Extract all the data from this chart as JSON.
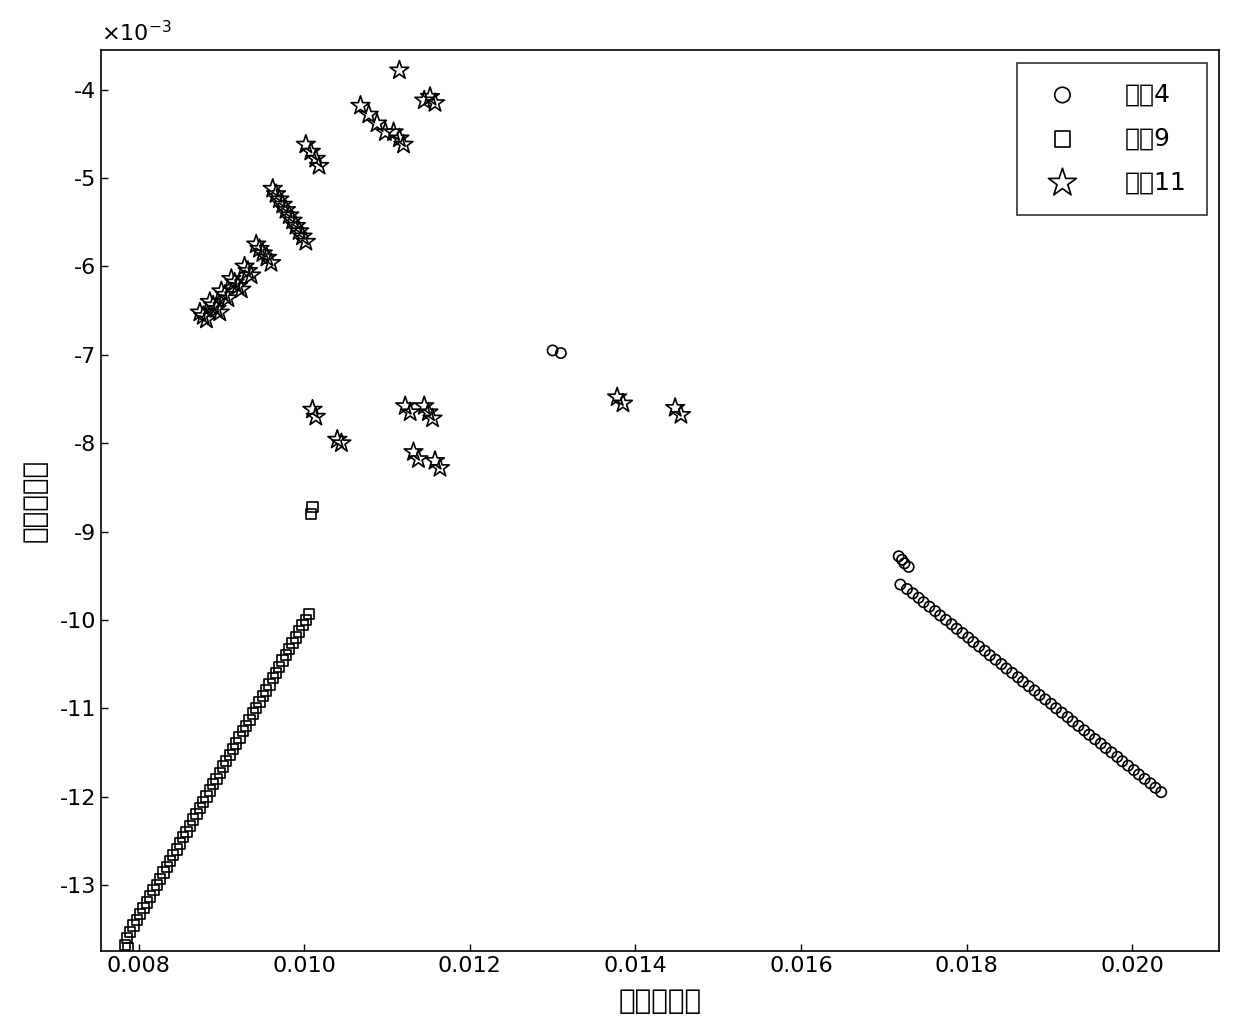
{
  "xlabel": "第一特征轴",
  "ylabel": "第二特征轴",
  "xlim": [
    0.00755,
    0.02105
  ],
  "ylim": [
    -13.75,
    -3.55
  ],
  "xtick_values": [
    0.008,
    0.01,
    0.012,
    0.014,
    0.016,
    0.018,
    0.02
  ],
  "ytick_values": [
    -4,
    -5,
    -6,
    -7,
    -8,
    -9,
    -10,
    -11,
    -12,
    -13
  ],
  "legend_labels": [
    "故障4",
    "故障9",
    "故障11"
  ],
  "background_color": "#ffffff",
  "font_size_axis_label": 20,
  "font_size_tick": 16,
  "font_size_legend": 18,
  "fault4_x": [
    0.013,
    0.0131,
    0.0172,
    0.01728,
    0.01735,
    0.01742,
    0.01748,
    0.01755,
    0.01762,
    0.01768,
    0.01775,
    0.01782,
    0.01788,
    0.01795,
    0.01802,
    0.01808,
    0.01815,
    0.01822,
    0.01828,
    0.01835,
    0.01842,
    0.01848,
    0.01855,
    0.01862,
    0.01868,
    0.01875,
    0.01882,
    0.01888,
    0.01895,
    0.01902,
    0.01908,
    0.01915,
    0.01922,
    0.01928,
    0.01935,
    0.01942,
    0.01948,
    0.01955,
    0.01962,
    0.01968,
    0.01975,
    0.01982,
    0.01988,
    0.01995,
    0.02002,
    0.02008,
    0.02015,
    0.02022,
    0.02028,
    0.02035,
    0.01718,
    0.01722,
    0.01725,
    0.0173
  ],
  "fault4_y": [
    -6.95,
    -6.98,
    -9.6,
    -9.65,
    -9.7,
    -9.75,
    -9.8,
    -9.85,
    -9.9,
    -9.95,
    -10.0,
    -10.05,
    -10.1,
    -10.15,
    -10.2,
    -10.25,
    -10.3,
    -10.35,
    -10.4,
    -10.45,
    -10.5,
    -10.55,
    -10.6,
    -10.65,
    -10.7,
    -10.75,
    -10.8,
    -10.85,
    -10.9,
    -10.95,
    -11.0,
    -11.05,
    -11.1,
    -11.15,
    -11.2,
    -11.25,
    -11.3,
    -11.35,
    -11.4,
    -11.45,
    -11.5,
    -11.55,
    -11.6,
    -11.65,
    -11.7,
    -11.75,
    -11.8,
    -11.85,
    -11.9,
    -11.95,
    -9.28,
    -9.32,
    -9.36,
    -9.4
  ],
  "fault9_x": [
    0.00786,
    0.0079,
    0.00794,
    0.00798,
    0.00802,
    0.00806,
    0.0081,
    0.00814,
    0.00818,
    0.00822,
    0.00826,
    0.0083,
    0.00834,
    0.00838,
    0.00842,
    0.00846,
    0.0085,
    0.00854,
    0.00858,
    0.00862,
    0.00866,
    0.0087,
    0.00874,
    0.00878,
    0.00882,
    0.00886,
    0.0089,
    0.00894,
    0.00898,
    0.00902,
    0.00906,
    0.0091,
    0.00914,
    0.00918,
    0.00922,
    0.00926,
    0.0093,
    0.00934,
    0.00938,
    0.00942,
    0.00946,
    0.0095,
    0.00954,
    0.00958,
    0.00962,
    0.00966,
    0.0097,
    0.00974,
    0.00978,
    0.00982,
    0.00986,
    0.0099,
    0.00994,
    0.00998,
    0.01002,
    0.01006,
    0.00784,
    0.00787,
    0.01008,
    0.0101
  ],
  "fault9_y": [
    -13.6,
    -13.53,
    -13.46,
    -13.4,
    -13.33,
    -13.26,
    -13.2,
    -13.13,
    -13.06,
    -13.0,
    -12.93,
    -12.86,
    -12.8,
    -12.73,
    -12.66,
    -12.6,
    -12.53,
    -12.46,
    -12.4,
    -12.33,
    -12.26,
    -12.2,
    -12.13,
    -12.06,
    -12.0,
    -11.93,
    -11.86,
    -11.8,
    -11.73,
    -11.66,
    -11.6,
    -11.53,
    -11.46,
    -11.4,
    -11.33,
    -11.26,
    -11.2,
    -11.13,
    -11.06,
    -11.0,
    -10.93,
    -10.86,
    -10.8,
    -10.73,
    -10.66,
    -10.6,
    -10.53,
    -10.46,
    -10.4,
    -10.33,
    -10.26,
    -10.2,
    -10.13,
    -10.06,
    -10.0,
    -9.93,
    -13.68,
    -13.72,
    -8.8,
    -8.72
  ],
  "fault11_x": [
    0.01115,
    0.01145,
    0.01068,
    0.01078,
    0.01088,
    0.01098,
    0.01002,
    0.01008,
    0.01014,
    0.01018,
    0.00962,
    0.00966,
    0.0097,
    0.00974,
    0.00978,
    0.00982,
    0.00986,
    0.0099,
    0.00994,
    0.00998,
    0.01002,
    0.00942,
    0.00946,
    0.0095,
    0.00955,
    0.0096,
    0.00928,
    0.00932,
    0.00936,
    0.00912,
    0.00916,
    0.0092,
    0.00924,
    0.009,
    0.00904,
    0.00908,
    0.00886,
    0.0089,
    0.00894,
    0.00898,
    0.00874,
    0.00878,
    0.00882,
    0.01108,
    0.01115,
    0.0112,
    0.01152,
    0.01158,
    0.0101,
    0.01014,
    0.0104,
    0.01045,
    0.01122,
    0.01128,
    0.01132,
    0.01138,
    0.01145,
    0.0115,
    0.01155,
    0.01158,
    0.01164,
    0.01378,
    0.01385,
    0.01448,
    0.01455
  ],
  "fault11_y": [
    -3.78,
    -4.12,
    -4.18,
    -4.28,
    -4.38,
    -4.48,
    -4.62,
    -4.7,
    -4.78,
    -4.86,
    -5.12,
    -5.18,
    -5.24,
    -5.3,
    -5.36,
    -5.42,
    -5.48,
    -5.54,
    -5.6,
    -5.66,
    -5.72,
    -5.75,
    -5.8,
    -5.85,
    -5.9,
    -5.96,
    -6.0,
    -6.05,
    -6.1,
    -6.14,
    -6.18,
    -6.22,
    -6.26,
    -6.28,
    -6.32,
    -6.36,
    -6.4,
    -6.44,
    -6.48,
    -6.52,
    -6.52,
    -6.56,
    -6.6,
    -4.48,
    -4.55,
    -4.62,
    -4.08,
    -4.15,
    -7.62,
    -7.7,
    -7.96,
    -8.0,
    -7.58,
    -7.65,
    -8.1,
    -8.18,
    -7.58,
    -7.65,
    -7.72,
    -8.2,
    -8.28,
    -7.48,
    -7.55,
    -7.6,
    -7.68
  ]
}
